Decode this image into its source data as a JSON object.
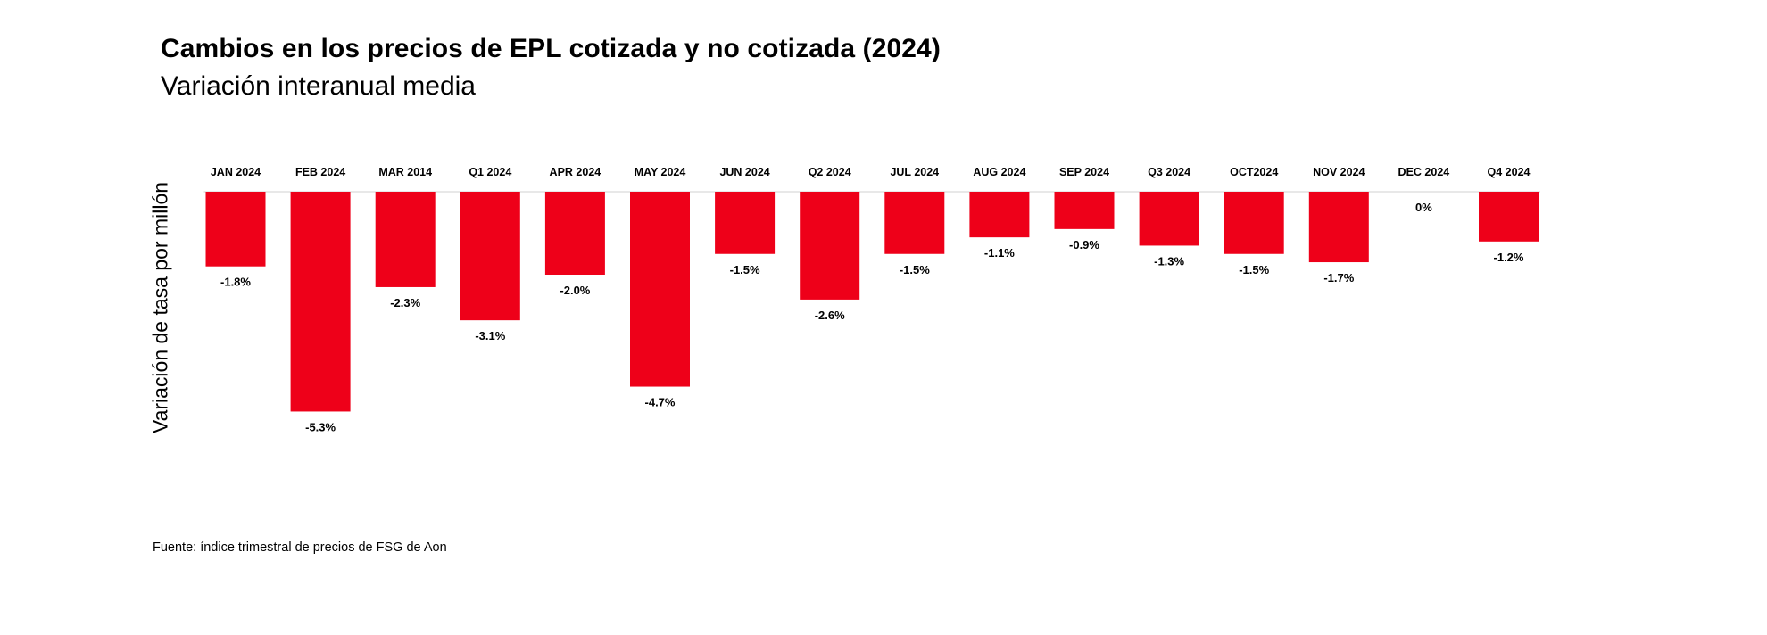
{
  "header": {
    "title": "Cambios en los precios de EPL cotizada y no cotizada (2024)",
    "subtitle": "Variación interanual media"
  },
  "footer": {
    "source": "Fuente: índice trimestral de precios de FSG de Aon"
  },
  "colors": {
    "bar": "#EE0019",
    "baseline": "#D9D9D9",
    "text": "#000000"
  },
  "chart_data": {
    "type": "bar",
    "title": "Cambios en los precios de EPL cotizada y no cotizada (2024)",
    "subtitle": "Variación interanual media",
    "ylabel": "Variación de tasa por millón",
    "xlabel": "",
    "categories": [
      "JAN 2024",
      "FEB 2024",
      "MAR 2014",
      "Q1 2024",
      "APR 2024",
      "MAY 2024",
      "JUN 2024",
      "Q2 2024",
      "JUL 2024",
      "AUG 2024",
      "SEP 2024",
      "Q3 2024",
      "OCT2024",
      "NOV 2024",
      "DEC 2024",
      "Q4 2024"
    ],
    "values": [
      -1.8,
      -5.3,
      -2.3,
      -3.1,
      -2.0,
      -4.7,
      -1.5,
      -2.6,
      -1.5,
      -1.1,
      -0.9,
      -1.3,
      -1.5,
      -1.7,
      0,
      -1.2
    ],
    "data_labels": [
      "-1.8%",
      "-5.3%",
      "-2.3%",
      "-3.1%",
      "-2.0%",
      "-4.7%",
      "-1.5%",
      "-2.6%",
      "-1.5%",
      "-1.1%",
      "-0.9%",
      "-1.3%",
      "-1.5%",
      "-1.7%",
      "0%",
      "-1.2%"
    ],
    "category_labels_position": "top",
    "grid": false,
    "legend": "none"
  }
}
